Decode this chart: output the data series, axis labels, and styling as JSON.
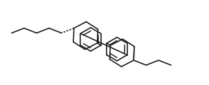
{
  "background_color": "#ffffff",
  "line_color": "#1a1a1a",
  "lw": 1.2,
  "fig_w": 3.02,
  "fig_h": 1.23,
  "dpi": 100
}
